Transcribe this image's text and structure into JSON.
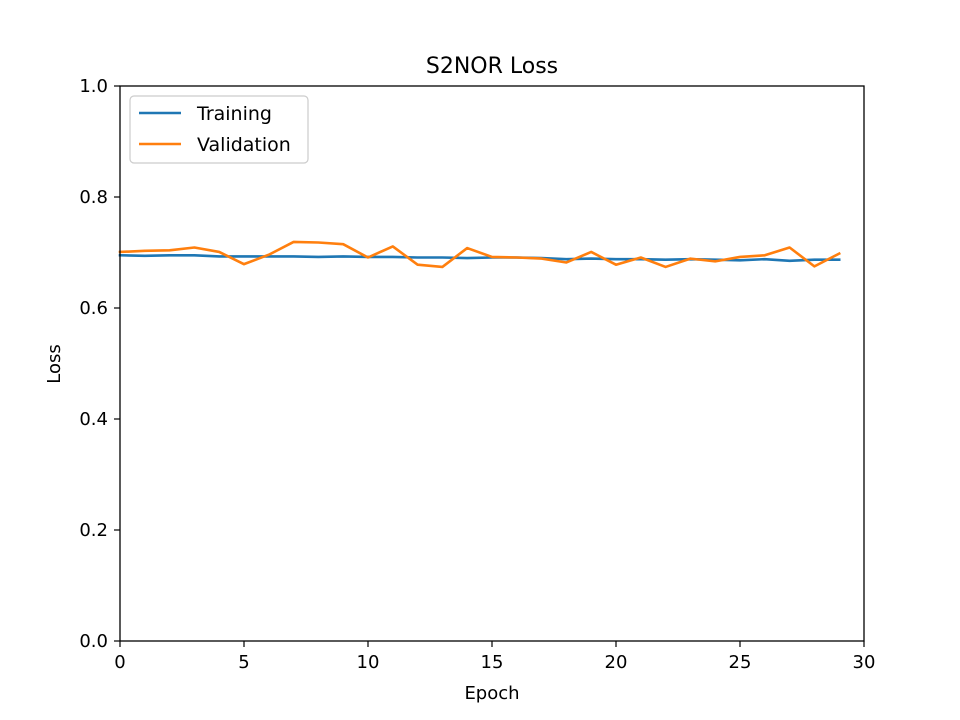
{
  "chart_data": {
    "type": "line",
    "title": "S2NOR Loss",
    "xlabel": "Epoch",
    "ylabel": "Loss",
    "xlim": [
      0,
      30
    ],
    "ylim": [
      0,
      1
    ],
    "xticks": [
      0,
      5,
      10,
      15,
      20,
      25,
      30
    ],
    "xtick_labels": [
      "0",
      "5",
      "10",
      "15",
      "20",
      "25",
      "30"
    ],
    "yticks": [
      0,
      0.2,
      0.4,
      0.6,
      0.8,
      1.0
    ],
    "ytick_labels": [
      "0.0",
      "0.2",
      "0.4",
      "0.6",
      "0.8",
      "1.0"
    ],
    "grid": false,
    "legend": "top-left",
    "x": [
      0,
      1,
      2,
      3,
      4,
      5,
      6,
      7,
      8,
      9,
      10,
      11,
      12,
      13,
      14,
      15,
      16,
      17,
      18,
      19,
      20,
      21,
      22,
      23,
      24,
      25,
      26,
      27,
      28,
      29
    ],
    "series": [
      {
        "name": "Training",
        "color": "#1f77b4",
        "values": [
          0.695,
          0.694,
          0.695,
          0.695,
          0.693,
          0.693,
          0.693,
          0.693,
          0.692,
          0.693,
          0.692,
          0.692,
          0.691,
          0.691,
          0.69,
          0.691,
          0.691,
          0.69,
          0.688,
          0.689,
          0.688,
          0.688,
          0.687,
          0.688,
          0.687,
          0.686,
          0.688,
          0.685,
          0.687,
          0.687
        ]
      },
      {
        "name": "Validation",
        "color": "#ff7f0e",
        "values": [
          0.701,
          0.703,
          0.704,
          0.709,
          0.701,
          0.679,
          0.696,
          0.719,
          0.718,
          0.715,
          0.691,
          0.711,
          0.678,
          0.674,
          0.708,
          0.692,
          0.691,
          0.689,
          0.682,
          0.701,
          0.678,
          0.691,
          0.674,
          0.689,
          0.684,
          0.692,
          0.695,
          0.709,
          0.675,
          0.698
        ]
      }
    ]
  }
}
